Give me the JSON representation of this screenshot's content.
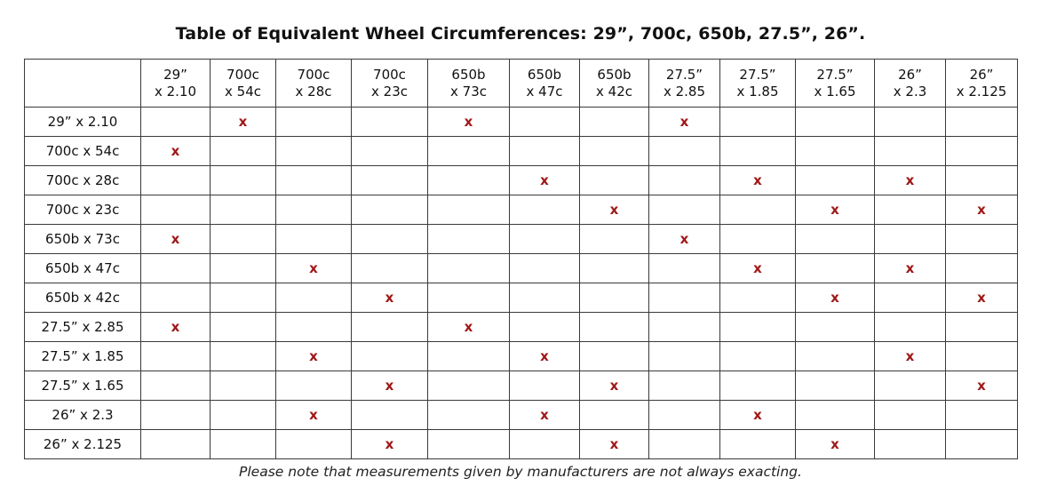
{
  "title": "Table of Equivalent Wheel Circumferences: 29”, 700c, 650b, 27.5”, 26”.",
  "mark": "x",
  "columns": [
    {
      "line1": "29”",
      "line2": "x 2.10"
    },
    {
      "line1": "700c",
      "line2": "x 54c"
    },
    {
      "line1": "700c",
      "line2": "x 28c"
    },
    {
      "line1": "700c",
      "line2": "x 23c"
    },
    {
      "line1": "650b",
      "line2": "x 73c"
    },
    {
      "line1": "650b",
      "line2": "x 47c"
    },
    {
      "line1": "650b",
      "line2": "x 42c"
    },
    {
      "line1": "27.5”",
      "line2": "x 2.85"
    },
    {
      "line1": "27.5”",
      "line2": "x 1.85"
    },
    {
      "line1": "27.5”",
      "line2": "x 1.65"
    },
    {
      "line1": "26”",
      "line2": "x 2.3"
    },
    {
      "line1": "26”",
      "line2": "x 2.125"
    }
  ],
  "rows": [
    {
      "label": "29” x 2.10",
      "marks": [
        false,
        true,
        false,
        false,
        true,
        false,
        false,
        true,
        false,
        false,
        false,
        false
      ]
    },
    {
      "label": "700c x 54c",
      "marks": [
        true,
        false,
        false,
        false,
        false,
        false,
        false,
        false,
        false,
        false,
        false,
        false
      ]
    },
    {
      "label": "700c x 28c",
      "marks": [
        false,
        false,
        false,
        false,
        false,
        true,
        false,
        false,
        true,
        false,
        true,
        false
      ]
    },
    {
      "label": "700c x 23c",
      "marks": [
        false,
        false,
        false,
        false,
        false,
        false,
        true,
        false,
        false,
        true,
        false,
        true
      ]
    },
    {
      "label": "650b x 73c",
      "marks": [
        true,
        false,
        false,
        false,
        false,
        false,
        false,
        true,
        false,
        false,
        false,
        false
      ]
    },
    {
      "label": "650b x 47c",
      "marks": [
        false,
        false,
        true,
        false,
        false,
        false,
        false,
        false,
        true,
        false,
        true,
        false
      ]
    },
    {
      "label": "650b x 42c",
      "marks": [
        false,
        false,
        false,
        true,
        false,
        false,
        false,
        false,
        false,
        true,
        false,
        true
      ]
    },
    {
      "label": "27.5” x 2.85",
      "marks": [
        true,
        false,
        false,
        false,
        true,
        false,
        false,
        false,
        false,
        false,
        false,
        false
      ]
    },
    {
      "label": "27.5” x 1.85",
      "marks": [
        false,
        false,
        true,
        false,
        false,
        true,
        false,
        false,
        false,
        false,
        true,
        false
      ]
    },
    {
      "label": "27.5” x 1.65",
      "marks": [
        false,
        false,
        false,
        true,
        false,
        false,
        true,
        false,
        false,
        false,
        false,
        true
      ]
    },
    {
      "label": "26” x 2.3",
      "marks": [
        false,
        false,
        true,
        false,
        false,
        true,
        false,
        false,
        true,
        false,
        false,
        false
      ]
    },
    {
      "label": "26” x 2.125",
      "marks": [
        false,
        false,
        false,
        true,
        false,
        false,
        true,
        false,
        false,
        true,
        false,
        false
      ]
    }
  ],
  "footnote": "Please note that measurements given by manufacturers are not always exacting.",
  "colors": {
    "mark": "#a01818",
    "border": "#3a3a3a",
    "text": "#111111"
  }
}
